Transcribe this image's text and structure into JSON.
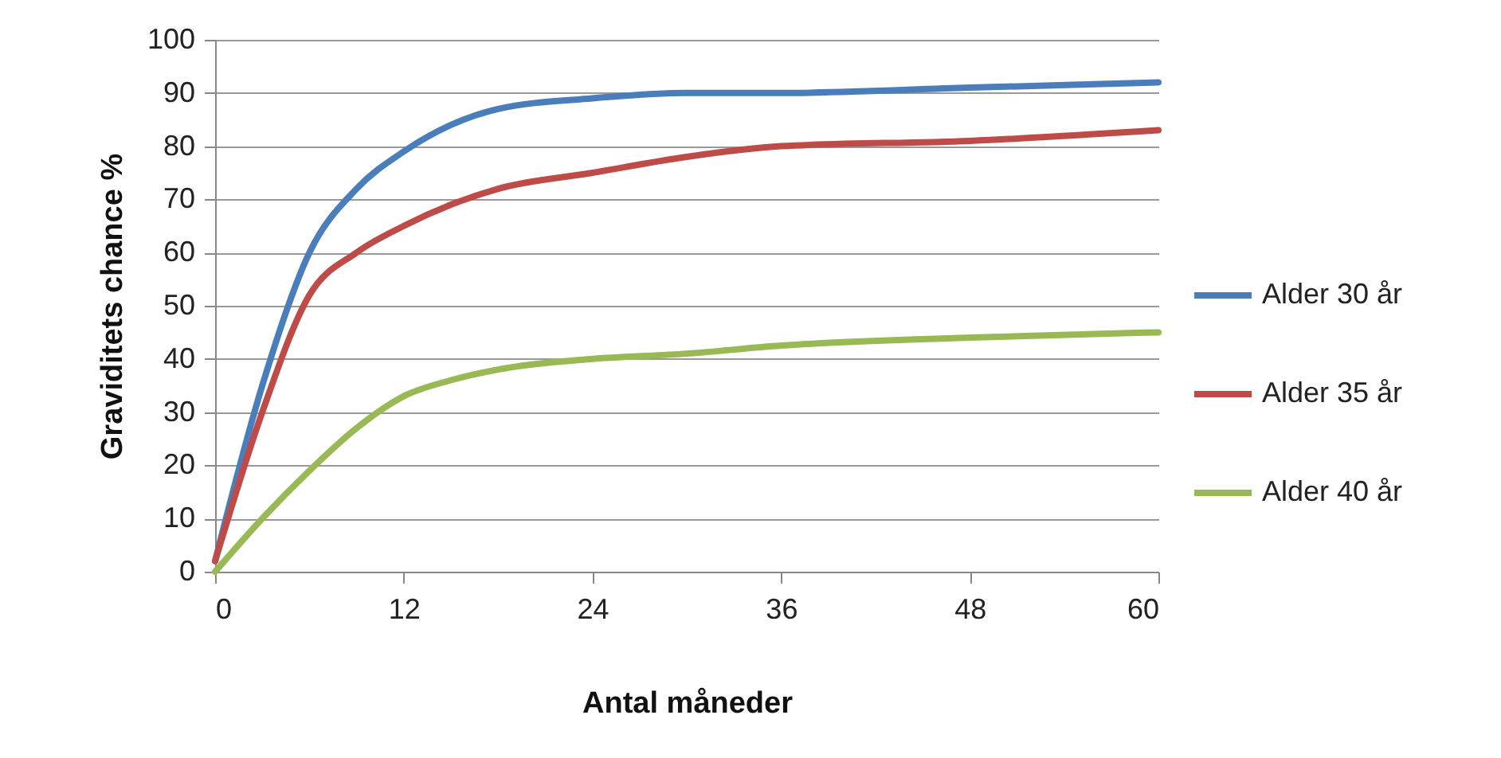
{
  "chart_data": {
    "type": "line",
    "xlabel": "Antal måneder",
    "ylabel": "Graviditets chance %",
    "x": [
      0,
      3,
      6,
      9,
      12,
      15,
      18,
      24,
      30,
      36,
      48,
      60
    ],
    "series": [
      {
        "name": "Alder 30 år",
        "color": "#4a7ebb",
        "values": [
          2,
          35,
          60,
          72,
          79,
          84,
          87,
          89,
          90,
          90,
          91,
          92
        ]
      },
      {
        "name": "Alder 35 år",
        "color": "#be4b48",
        "values": [
          2,
          30,
          52,
          60,
          65,
          69,
          72,
          75,
          78,
          80,
          81,
          83
        ]
      },
      {
        "name": "Alder 40 år",
        "color": "#98b954",
        "values": [
          0,
          10,
          19,
          27,
          33,
          36,
          38,
          40,
          41,
          42.5,
          44,
          45
        ]
      }
    ],
    "xlim": [
      0,
      60
    ],
    "xticks": [
      0,
      12,
      24,
      36,
      48,
      60
    ],
    "ylim": [
      0,
      100
    ],
    "yticks": [
      0,
      10,
      20,
      30,
      40,
      50,
      60,
      70,
      80,
      90,
      100
    ],
    "grid": "y",
    "legend": "right",
    "marker": "none",
    "line_style": "solid"
  }
}
